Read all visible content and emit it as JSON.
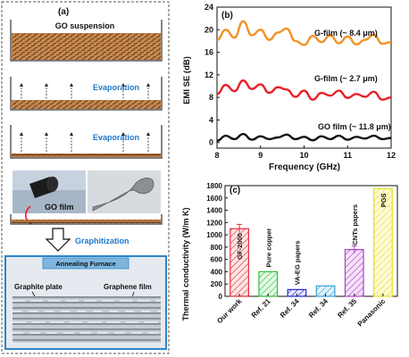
{
  "panel_a": {
    "label": "(a)",
    "suspension_label": "GO suspension",
    "evaporation_label_1": "Evaporation",
    "evaporation_label_2": "Evaporation",
    "go_film_label": "GO film",
    "graphitization_label": "Graphitization",
    "furnace_label": "Annealing Furnace",
    "graphite_plate_label": "Graphite plate",
    "graphene_film_label": "Graphene film",
    "colors": {
      "go": "#b0713a",
      "go_dark": "#6b3e18",
      "accent_blue": "#1f78c8",
      "frame": "#2b86c8",
      "furnace_bg": "#cfd6dc"
    }
  },
  "chart_data": [
    {
      "type": "line",
      "panel_label": "(b)",
      "xlabel": "Frequency (GHz)",
      "ylabel": "EMI SE (dB)",
      "xlim": [
        8,
        12
      ],
      "ylim": [
        -1,
        24
      ],
      "xticks": [
        8,
        9,
        10,
        11,
        12
      ],
      "yticks": [
        0,
        4,
        8,
        12,
        16,
        20,
        24
      ],
      "grid": false,
      "legend": "none",
      "x": [
        8.0,
        8.2,
        8.4,
        8.6,
        8.8,
        9.0,
        9.2,
        9.4,
        9.6,
        9.8,
        10.0,
        10.2,
        10.4,
        10.6,
        10.8,
        11.0,
        11.2,
        11.4,
        11.6,
        11.8,
        12.0
      ],
      "series": [
        {
          "name": "G-film (~ 8.4 μm)",
          "color": "#f29222",
          "values": [
            18.2,
            20.0,
            18.6,
            21.5,
            19.0,
            20.0,
            18.2,
            19.5,
            20.2,
            18.0,
            17.3,
            18.9,
            17.8,
            19.0,
            17.6,
            18.8,
            17.4,
            18.2,
            19.1,
            17.5,
            17.8
          ]
        },
        {
          "name": "G-film (~ 2.7 μm)",
          "color": "#e8202a",
          "values": [
            8.6,
            10.2,
            9.1,
            11.0,
            9.5,
            10.3,
            8.8,
            9.8,
            9.4,
            8.1,
            9.2,
            7.6,
            8.8,
            8.3,
            9.2,
            7.9,
            8.6,
            8.1,
            9.0,
            7.6,
            8.0
          ]
        },
        {
          "name": "GO film (~ 11.8 μm)",
          "color": "#111111",
          "values": [
            0.3,
            1.2,
            0.6,
            1.5,
            0.5,
            1.1,
            0.6,
            0.9,
            1.4,
            0.6,
            1.0,
            0.4,
            1.1,
            0.6,
            1.2,
            0.5,
            1.0,
            0.7,
            1.2,
            0.6,
            0.8
          ]
        }
      ]
    },
    {
      "type": "bar",
      "panel_label": "(c)",
      "ylabel": "Thermal conductivity (W/m K)",
      "ylim": [
        0,
        1800
      ],
      "yticks": [
        0,
        200,
        400,
        600,
        800,
        1000,
        1200,
        1400,
        1600,
        1800
      ],
      "categories": [
        "Our work",
        "Ref. 21",
        "Ref. 34",
        "Ref. 34",
        "Ref. 35",
        "Panasonic"
      ],
      "values": [
        1100,
        400,
        110,
        170,
        760,
        1750
      ],
      "errors": [
        70,
        0,
        0,
        0,
        60,
        0
      ],
      "bar_labels": [
        "GF-2000",
        "Pure copper",
        "VA-EG papers",
        "",
        "CNTs papers",
        "PGS"
      ],
      "colors": [
        "#e8303a",
        "#2cc23a",
        "#2a2ad0",
        "#3aa0d8",
        "#b040c8",
        "#e8e020"
      ],
      "fills": [
        "#fde6e6",
        "#e6fae6",
        "#e6e6fb",
        "#e3f2fb",
        "#f4e3f8",
        "#fdfbd9"
      ]
    }
  ]
}
